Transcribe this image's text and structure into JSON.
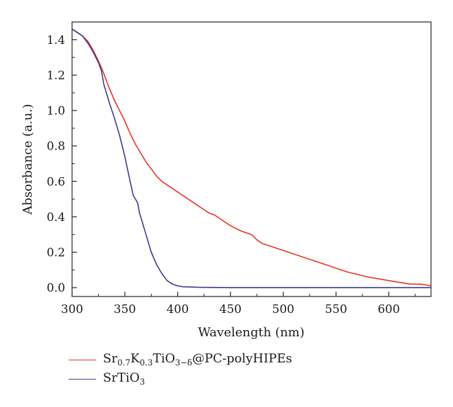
{
  "chart_data": {
    "type": "line",
    "title": "",
    "xlabel": "Wavelength (nm)",
    "ylabel": "Absorbance (a.u.)",
    "xlim": [
      300,
      640
    ],
    "ylim": [
      -0.05,
      1.5
    ],
    "xticks": [
      "300",
      "350",
      "400",
      "450",
      "500",
      "550",
      "600"
    ],
    "yticks": [
      "0.0",
      "0.2",
      "0.4",
      "0.6",
      "0.8",
      "1.0",
      "1.2",
      "1.4"
    ],
    "legend_position": "bottom-left (below chart)",
    "grid": false,
    "series": [
      {
        "name": "Sr0.7K0.3TiO3−δ@PC-polyHIPEs",
        "color": "#e8331f",
        "x": [
          300,
          310,
          315,
          320,
          325,
          330,
          335,
          340,
          345,
          350,
          355,
          360,
          365,
          370,
          375,
          380,
          385,
          390,
          395,
          400,
          405,
          410,
          415,
          420,
          425,
          430,
          435,
          440,
          450,
          460,
          470,
          475,
          480,
          500,
          520,
          540,
          560,
          580,
          600,
          620,
          630,
          640
        ],
        "y": [
          1.46,
          1.42,
          1.39,
          1.34,
          1.28,
          1.21,
          1.13,
          1.06,
          1.0,
          0.94,
          0.87,
          0.81,
          0.76,
          0.71,
          0.67,
          0.63,
          0.6,
          0.58,
          0.56,
          0.54,
          0.52,
          0.5,
          0.48,
          0.46,
          0.44,
          0.42,
          0.41,
          0.39,
          0.35,
          0.32,
          0.3,
          0.27,
          0.25,
          0.21,
          0.17,
          0.13,
          0.09,
          0.06,
          0.04,
          0.02,
          0.02,
          0.01
        ]
      },
      {
        "name": "SrTiO3",
        "color": "#3a3a8c",
        "x": [
          300,
          310,
          315,
          320,
          325,
          328,
          330,
          335,
          340,
          345,
          350,
          355,
          358,
          360,
          362,
          364,
          366,
          370,
          375,
          380,
          385,
          390,
          395,
          400,
          405,
          420,
          450,
          500,
          550,
          600,
          640
        ],
        "y": [
          1.46,
          1.42,
          1.38,
          1.33,
          1.27,
          1.22,
          1.15,
          1.05,
          0.96,
          0.86,
          0.74,
          0.6,
          0.52,
          0.5,
          0.48,
          0.42,
          0.38,
          0.3,
          0.2,
          0.13,
          0.08,
          0.04,
          0.02,
          0.01,
          0.005,
          0.002,
          0.0,
          0.0,
          0.0,
          0.0,
          0.0
        ]
      }
    ]
  },
  "legend": {
    "s1_base": "Sr",
    "s1_sub1": "0.7",
    "s1_mid1": "K",
    "s1_sub2": "0.3",
    "s1_mid2": "TiO",
    "s1_sub3": "3−δ",
    "s1_tail": "@PC-polyHIPEs",
    "s2_base": "SrTiO",
    "s2_sub": "3"
  }
}
